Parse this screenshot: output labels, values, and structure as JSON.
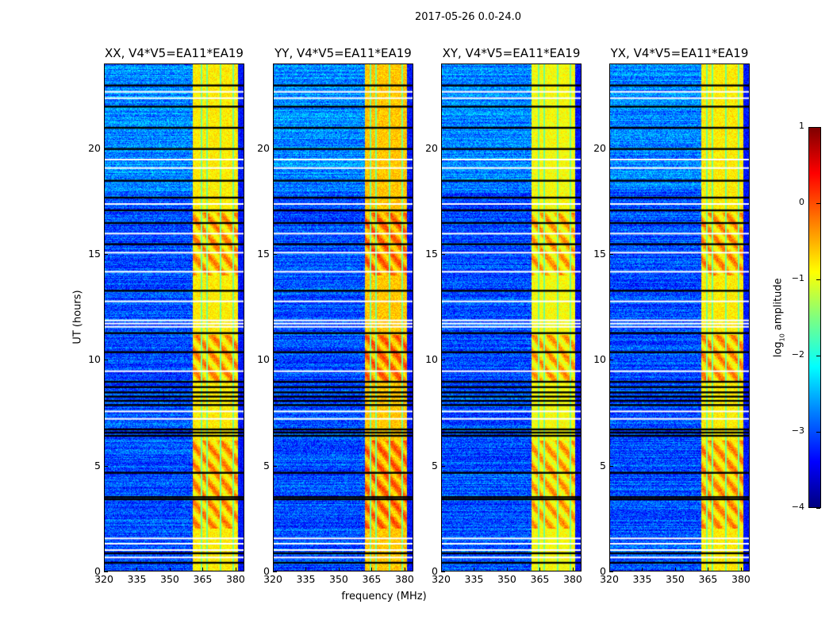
{
  "suptitle": "2017-05-26 0.0-24.0",
  "chart_data": {
    "type": "heatmap",
    "title": "2017-05-26 0.0-24.0",
    "xlabel": "frequency (MHz)",
    "ylabel": "UT (hours)",
    "xlim": [
      320,
      384
    ],
    "ylim": [
      0,
      24
    ],
    "xticks": [
      320,
      335,
      350,
      365,
      380
    ],
    "yticks": [
      0,
      5,
      10,
      15,
      20
    ],
    "panels": [
      {
        "title": "XX, V4*V5=EA11*EA19",
        "band_start_mhz": 360,
        "band_level": -0.8
      },
      {
        "title": "YY, V4*V5=EA11*EA19",
        "band_start_mhz": 361.5,
        "band_level": -0.6
      },
      {
        "title": "XY, V4*V5=EA11*EA19",
        "band_start_mhz": 360.5,
        "band_level": -0.9
      },
      {
        "title": "YX, V4*V5=EA11*EA19",
        "band_start_mhz": 361.5,
        "band_level": -0.8
      }
    ],
    "band_end_mhz": 380.5,
    "band_gaps_mhz": [
      364,
      366.5,
      372.5,
      378.5
    ],
    "background_level": -3.0,
    "flagged_black_ut": [
      0.45,
      0.9,
      3.45,
      3.55,
      4.7,
      6.45,
      6.6,
      6.75,
      7.9,
      8.1,
      8.3,
      8.5,
      8.75,
      9.0,
      10.4,
      11.3,
      13.3,
      15.5,
      16.5,
      17.1,
      17.7,
      18.5,
      20.0,
      21.0,
      22.0,
      23.0
    ],
    "flagged_white_ut": [
      0.7,
      1.05,
      1.35,
      1.6,
      7.25,
      7.6,
      9.5,
      11.6,
      11.75,
      11.9,
      12.8,
      14.2,
      15.1,
      16.0,
      17.4,
      19.1,
      19.5,
      22.4,
      22.7
    ],
    "bright_ut_ranges": [
      [
        2.0,
        6.2
      ],
      [
        9.0,
        11.2
      ],
      [
        14.0,
        17.0
      ]
    ],
    "colorbar": {
      "label_main": "log",
      "label_sub": "10",
      "label_rest": " amplitude",
      "range": [
        -4,
        1
      ],
      "ticks": [
        -4,
        -3,
        -2,
        -1,
        0,
        1
      ],
      "colormap": "jet"
    }
  }
}
